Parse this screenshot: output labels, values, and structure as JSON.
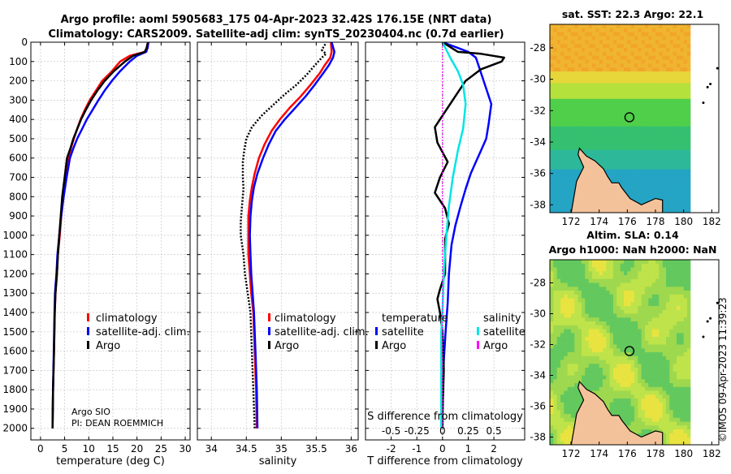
{
  "chart_data": {
    "title_line1": "Argo profile: aoml 5905683_175 04-Apr-2023 32.42S 176.15E (NRT data)",
    "title_line2": "Climatology: CARS2009. Satellite-adj clim: synTS_20230404.nc (0.7d earlier)",
    "depth_axis": {
      "range": [
        0,
        2060
      ],
      "ticks": [
        0,
        100,
        200,
        300,
        400,
        500,
        600,
        700,
        800,
        900,
        1000,
        1100,
        1200,
        1300,
        1400,
        1500,
        1600,
        1700,
        1800,
        1900,
        2000
      ]
    },
    "panels": [
      {
        "type": "line",
        "name": "temperature",
        "xlabel": "temperature (deg C)",
        "xlim": [
          -2,
          31
        ],
        "xticks": [
          0,
          5,
          10,
          15,
          20,
          25,
          30
        ],
        "legend": [
          {
            "label": "climatology",
            "color": "#ff0000"
          },
          {
            "label": "satellite-adj. clim.",
            "color": "#0000ff"
          },
          {
            "label": "Argo",
            "color": "#000000"
          }
        ],
        "annotation": [
          "Argo SIO",
          "PI: DEAN ROEMMICH"
        ],
        "series": [
          {
            "name": "climatology",
            "color": "#ff0000",
            "style": "solid",
            "width": 2.5,
            "x": [
              22.4,
              22.2,
              21.6,
              18.5,
              16.5,
              14.8,
              12.8,
              11.5,
              10.2,
              9.2,
              8.3,
              7.6,
              6.9,
              6.3,
              5.8,
              5.2,
              4.7,
              4.3,
              4.0,
              3.6,
              3.4,
              3.1,
              2.95,
              2.8,
              2.6,
              2.5
            ],
            "y": [
              0,
              30,
              50,
              70,
              100,
              150,
              200,
              250,
              300,
              350,
              400,
              450,
              500,
              550,
              600,
              700,
              800,
              900,
              1000,
              1100,
              1200,
              1300,
              1400,
              1600,
              1800,
              2000
            ]
          },
          {
            "name": "satellite-adj. clim.",
            "color": "#0000ff",
            "style": "solid",
            "width": 2.5,
            "x": [
              22.3,
              22.2,
              21.9,
              20.0,
              18.5,
              16.5,
              14.8,
              13.3,
              12.0,
              10.8,
              9.6,
              8.6,
              7.6,
              6.8,
              6.1,
              5.4,
              4.8,
              4.3,
              3.9,
              3.5,
              3.3,
              3.0,
              2.9,
              2.75,
              2.6,
              2.5
            ],
            "y": [
              0,
              30,
              50,
              70,
              100,
              150,
              200,
              250,
              300,
              350,
              400,
              450,
              500,
              550,
              600,
              700,
              800,
              900,
              1000,
              1100,
              1200,
              1300,
              1400,
              1600,
              1800,
              2000
            ]
          },
          {
            "name": "Argo",
            "color": "#000000",
            "style": "solid",
            "width": 2.5,
            "x": [
              22.2,
              22.0,
              21.6,
              19.2,
              17.5,
              15.2,
              13.3,
              11.8,
              10.5,
              9.4,
              8.4,
              7.6,
              6.8,
              6.2,
              5.5,
              5.0,
              4.5,
              4.2,
              3.9,
              3.6,
              3.4,
              3.1,
              2.95,
              2.8,
              2.6,
              2.5
            ],
            "y": [
              5,
              30,
              50,
              70,
              100,
              150,
              200,
              250,
              300,
              350,
              400,
              450,
              500,
              550,
              600,
              700,
              800,
              900,
              1000,
              1100,
              1200,
              1300,
              1400,
              1600,
              1800,
              2000
            ]
          }
        ]
      },
      {
        "type": "line",
        "name": "salinity",
        "xlabel": "salinity",
        "xlim": [
          33.8,
          36.1
        ],
        "xticks": [
          34,
          34.5,
          35,
          35.5,
          36
        ],
        "legend": [
          {
            "label": "climatology",
            "color": "#ff0000"
          },
          {
            "label": "satellite-adj. clim.",
            "color": "#0000ff"
          },
          {
            "label": "Argo",
            "color": "#000000"
          }
        ],
        "series": [
          {
            "name": "climatology",
            "color": "#ff0000",
            "style": "solid",
            "width": 2.5,
            "x": [
              35.71,
              35.72,
              35.7,
              35.62,
              35.55,
              35.42,
              35.28,
              35.12,
              34.98,
              34.86,
              34.76,
              34.68,
              34.62,
              34.58,
              34.55,
              34.53,
              34.53,
              34.53,
              34.55,
              34.57,
              34.6,
              34.62,
              34.64,
              34.65
            ],
            "y": [
              0,
              50,
              80,
              120,
              160,
              220,
              280,
              340,
              400,
              460,
              530,
              600,
              680,
              750,
              820,
              900,
              1000,
              1100,
              1200,
              1300,
              1400,
              1600,
              1800,
              2000
            ]
          },
          {
            "name": "satellite-adj. clim.",
            "color": "#0000ff",
            "style": "solid",
            "width": 2.5,
            "x": [
              35.72,
              35.76,
              35.74,
              35.68,
              35.6,
              35.48,
              35.35,
              35.2,
              35.05,
              34.92,
              34.82,
              34.74,
              34.66,
              34.61,
              34.58,
              34.56,
              34.55,
              34.56,
              34.57,
              34.59,
              34.61,
              34.63,
              34.65,
              34.66
            ],
            "y": [
              0,
              50,
              80,
              120,
              160,
              220,
              280,
              340,
              400,
              460,
              530,
              600,
              680,
              750,
              820,
              900,
              1000,
              1100,
              1200,
              1300,
              1400,
              1600,
              1800,
              2000
            ]
          },
          {
            "name": "Argo",
            "color": "#000000",
            "style": "dotted",
            "width": 2.5,
            "x": [
              35.63,
              35.58,
              35.64,
              35.58,
              35.48,
              35.36,
              35.22,
              35.05,
              34.9,
              34.72,
              34.58,
              34.5,
              34.47,
              34.45,
              34.45,
              34.46,
              34.44,
              34.42,
              34.42,
              34.46,
              34.48,
              34.52,
              34.56,
              34.58,
              34.6,
              34.62
            ],
            "y": [
              10,
              40,
              60,
              80,
              120,
              170,
              220,
              270,
              320,
              380,
              440,
              500,
              560,
              620,
              700,
              760,
              840,
              930,
              1000,
              1100,
              1200,
              1300,
              1400,
              1600,
              1800,
              2000
            ]
          }
        ]
      },
      {
        "type": "line",
        "name": "differences",
        "xlabel": "T difference from climatology",
        "xlabel_top": "S difference from climatology",
        "xlim": [
          -3,
          3.2
        ],
        "xticks": [
          -2,
          -1,
          0,
          1,
          2
        ],
        "xticks_top": [
          -0.5,
          -0.25,
          0,
          0.25,
          0.5
        ],
        "legend_left": {
          "title": "temperature",
          "items": [
            {
              "label": "satellite",
              "color": "#0000ff"
            },
            {
              "label": "Argo",
              "color": "#000000"
            }
          ]
        },
        "legend_right": {
          "title": "salinity",
          "items": [
            {
              "label": "satellite",
              "color": "#00e5e5"
            },
            {
              "label": "Argo",
              "color": "#ff00ff"
            }
          ]
        },
        "series": [
          {
            "name": "temperature satellite",
            "color": "#0000ff",
            "style": "solid",
            "width": 2.5,
            "x": [
              0,
              0.6,
              1.0,
              1.3,
              1.4,
              1.5,
              1.7,
              1.9,
              1.8,
              1.7,
              1.5,
              1.3,
              1.1,
              0.9,
              0.7,
              0.5,
              0.35,
              0.25,
              0.2,
              0.12,
              0.05,
              0.02,
              0,
              0
            ],
            "y": [
              0,
              30,
              50,
              80,
              120,
              160,
              240,
              320,
              420,
              500,
              560,
              620,
              680,
              760,
              850,
              950,
              1050,
              1200,
              1350,
              1500,
              1650,
              1800,
              1950,
              2000
            ]
          },
          {
            "name": "temperature Argo",
            "color": "#000000",
            "style": "solid",
            "width": 2.5,
            "x": [
              0,
              0.6,
              1.5,
              2.4,
              2.3,
              1.5,
              0.9,
              0.5,
              0.1,
              -0.3,
              -0.2,
              0.2,
              -0.1,
              -0.3,
              0.1,
              0.25,
              0.1,
              0.1,
              0.1,
              -0.1,
              -0.2,
              -0.1,
              0,
              0.05,
              0,
              0
            ],
            "y": [
              0,
              50,
              60,
              80,
              100,
              140,
              200,
              280,
              360,
              440,
              520,
              620,
              700,
              780,
              860,
              940,
              1020,
              1100,
              1200,
              1280,
              1330,
              1400,
              1500,
              1700,
              1900,
              2000
            ]
          },
          {
            "name": "salinity satellite",
            "color": "#00e5e5",
            "style": "solid",
            "width": 2.5,
            "x": [
              0,
              0.3,
              0.6,
              0.8,
              0.9,
              0.8,
              0.6,
              0.4,
              0.25,
              0.15,
              0.05,
              0,
              -0.05,
              -0.05,
              -0.05,
              -0.05
            ],
            "y": [
              0,
              80,
              150,
              220,
              320,
              450,
              560,
              700,
              850,
              1000,
              1200,
              1400,
              1500,
              1700,
              1900,
              2000
            ]
          },
          {
            "name": "salinity Argo",
            "color": "#ff00ff",
            "style": "dotted",
            "width": 1.2,
            "x": [
              0,
              0,
              0
            ],
            "y": [
              0,
              1000,
              2000
            ]
          }
        ]
      }
    ],
    "maps": [
      {
        "type": "heatmap",
        "name": "sst-map",
        "title": "sat. SST: 22.3 Argo: 22.1",
        "xlim": [
          170.5,
          182.5
        ],
        "ylim": [
          -38.5,
          -26.5
        ],
        "xticks": [
          172,
          174,
          176,
          178,
          180,
          182
        ],
        "yticks": [
          -28,
          -30,
          -32,
          -34,
          -36,
          -38
        ],
        "argo_lon": 176.15,
        "argo_lat": -32.42
      },
      {
        "type": "heatmap",
        "name": "sla-map",
        "title_line1": "Altim. SLA: 0.14",
        "title_line2": "Argo h1000: NaN h2000: NaN",
        "xlim": [
          170.5,
          182.5
        ],
        "ylim": [
          -38.5,
          -26.5
        ],
        "xticks": [
          172,
          174,
          176,
          178,
          180,
          182
        ],
        "yticks": [
          -28,
          -30,
          -32,
          -34,
          -36,
          -38
        ],
        "argo_lon": 176.15,
        "argo_lat": -32.42
      }
    ],
    "credit": "©IMOS 09-Apr-2023 11:39:23"
  }
}
